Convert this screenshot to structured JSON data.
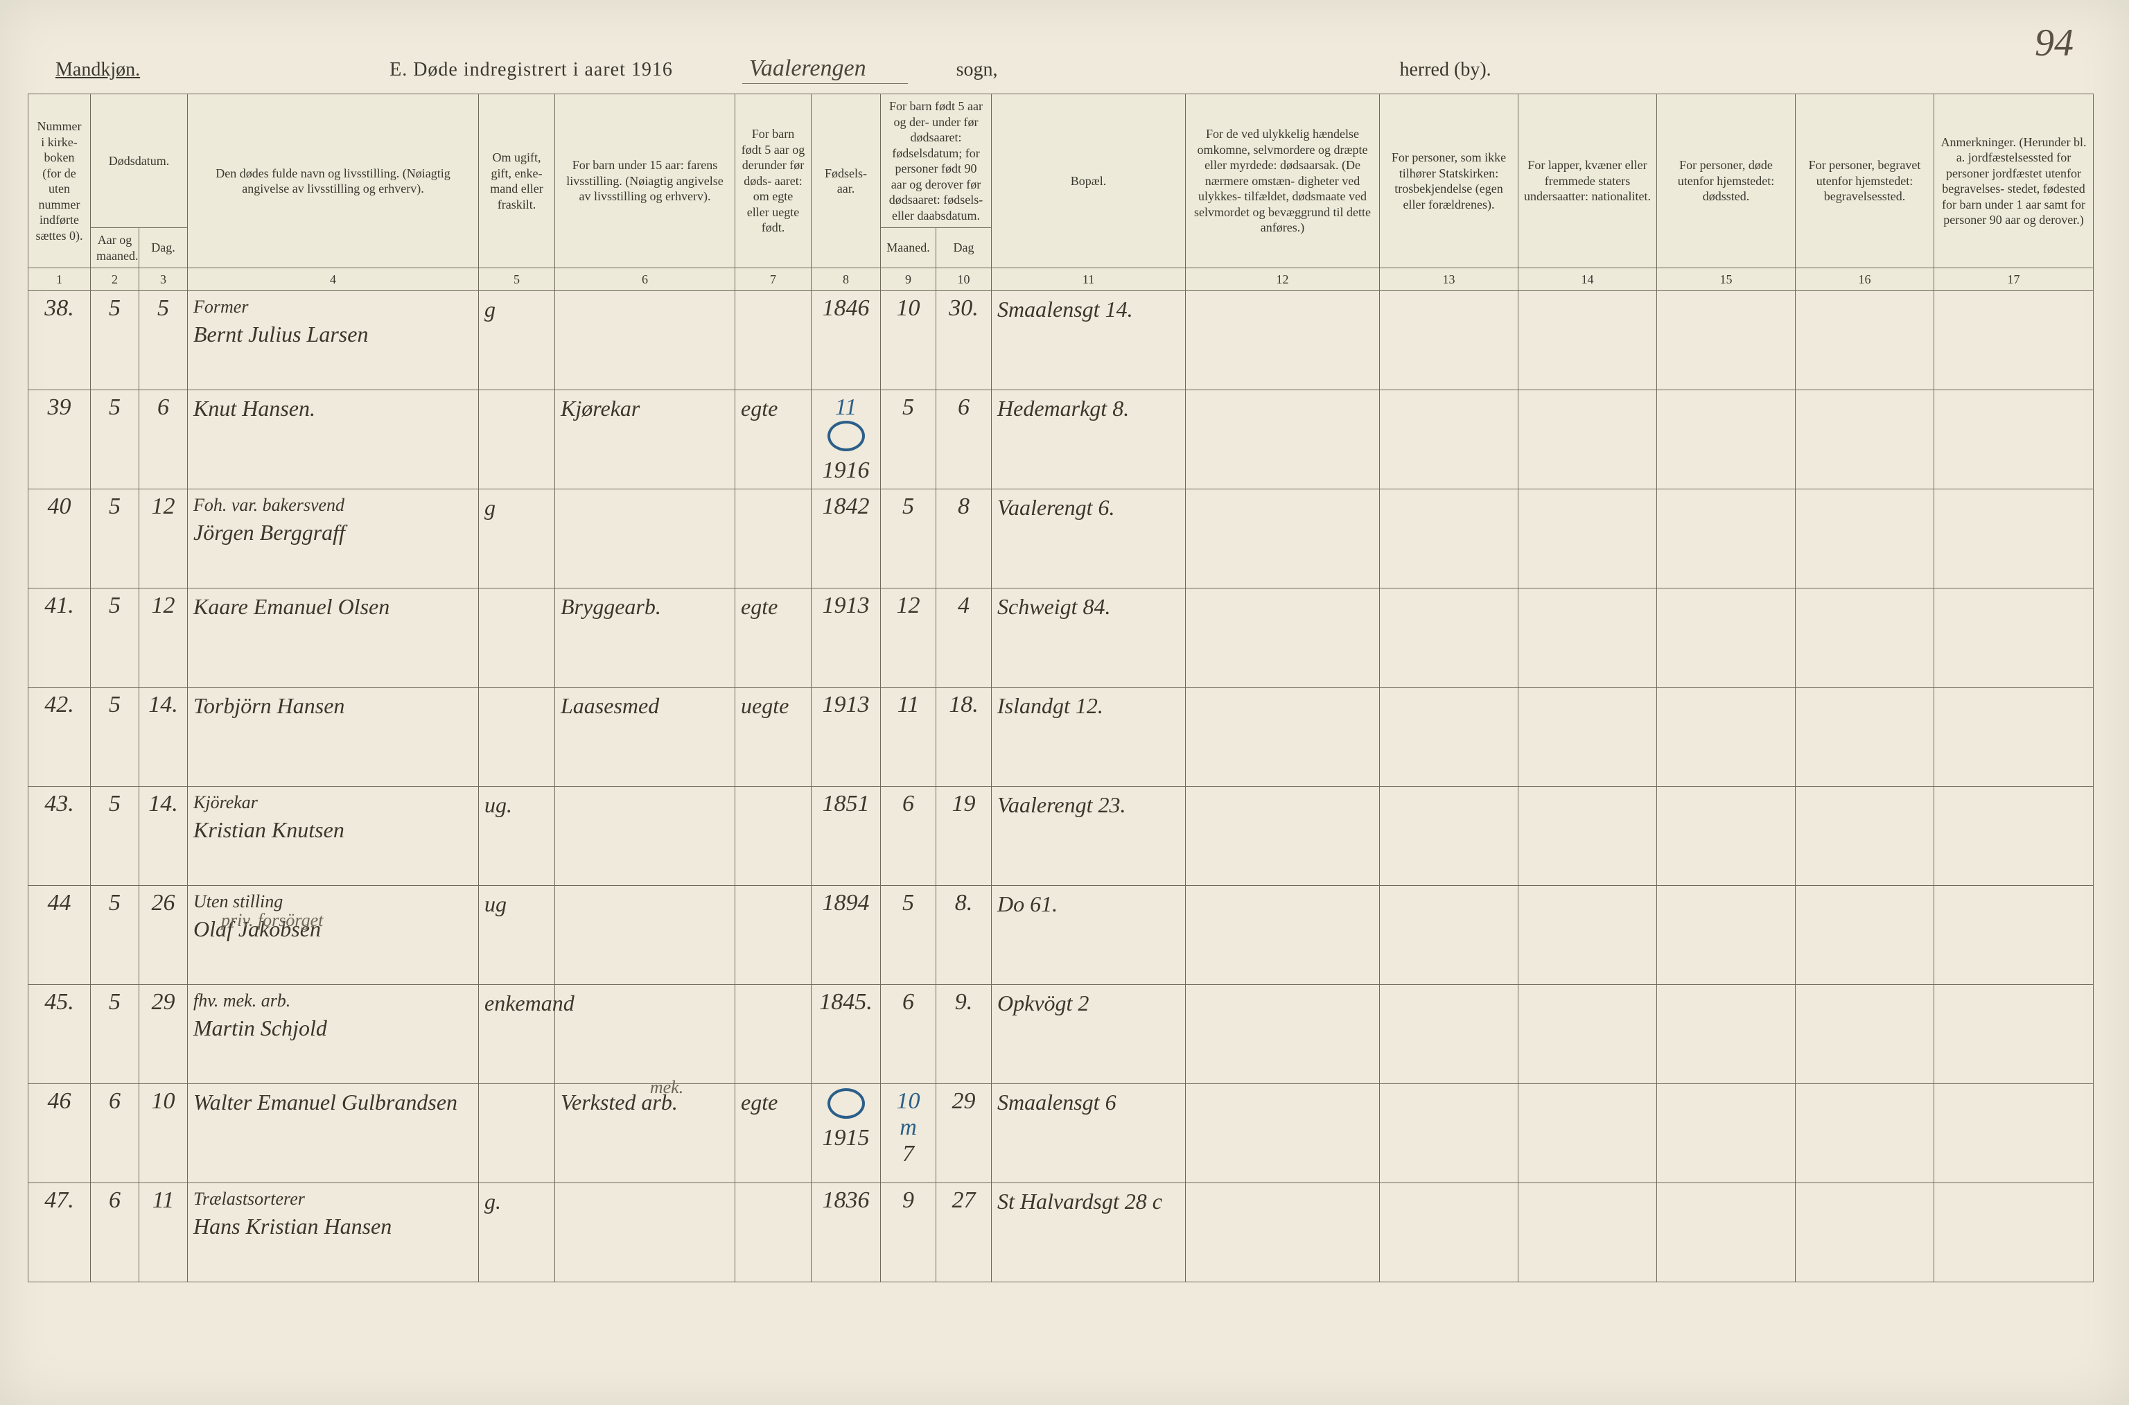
{
  "page_number_handwritten": "94",
  "header": {
    "mandkjon": "Mandkjøn.",
    "form_title": "E.  Døde indregistrert i aaret 191",
    "year_suffix": "6",
    "sogn_handwritten": "Vaalerengen",
    "sogn_label": "sogn,",
    "herred_label": "herred (by)."
  },
  "columns": {
    "c1": "Nummer i kirke- boken (for de uten nummer indførte sættes 0).",
    "c2_top": "Dødsdatum.",
    "c2a": "Aar og maaned.",
    "c2b": "Dag.",
    "c4": "Den dødes fulde navn og livsstilling. (Nøiagtig angivelse av livsstilling og erhverv).",
    "c5": "Om ugift, gift, enke- mand eller fraskilt.",
    "c6": "For barn under 15 aar: farens livsstilling. (Nøiagtig angivelse av livsstilling og erhverv).",
    "c7": "For barn født 5 aar og derunder før døds- aaret: om egte eller uegte født.",
    "c8": "Fødsels- aar.",
    "c9_top": "For barn født 5 aar og der- under før dødsaaret: fødselsdatum; for personer født 90 aar og derover før dødsaaret: fødsels- eller daabsdatum.",
    "c9a": "Maaned.",
    "c9b": "Dag",
    "c11": "Bopæl.",
    "c12": "For de ved ulykkelig hændelse omkomne, selvmordere og dræpte eller myrdede: dødsaarsak. (De nærmere omstæn- digheter ved ulykkes- tilfældet, dødsmaate ved selvmordet og bevæggrund til dette anføres.)",
    "c13": "For personer, som ikke tilhører Statskirken: trosbekjendelse (egen eller forældrenes).",
    "c14": "For lapper, kvæner eller fremmede staters undersaatter: nationalitet.",
    "c15": "For personer, døde utenfor hjemstedet: dødssted.",
    "c16": "For personer, begravet utenfor hjemstedet: begravelsessted.",
    "c17": "Anmerkninger. (Herunder bl. a. jordfæstelsessted for personer jordfæstet utenfor begravelses- stedet, fødested for barn under 1 aar samt for personer 90 aar og derover.)"
  },
  "colnums": [
    "1",
    "2",
    "3",
    "4",
    "5",
    "6",
    "7",
    "8",
    "9",
    "10",
    "11",
    "12",
    "13",
    "14",
    "15",
    "16",
    "17"
  ],
  "rows": [
    {
      "no": "38.",
      "mm": "5",
      "dd": "5",
      "occ": "Former",
      "name": "Bernt Julius Larsen",
      "civ": "g",
      "c6": "",
      "c7": "",
      "c8": "1846",
      "c9m": "10",
      "c9d": "30.",
      "bopel": "Smaalensgt 14."
    },
    {
      "no": "39",
      "mm": "5",
      "dd": "6",
      "occ": "",
      "name": "Knut Hansen.",
      "civ": "",
      "c6": "Kjørekar",
      "c7": "egte",
      "c8": "1916",
      "c8_circle": true,
      "c9m": "5",
      "c9d": "6",
      "bopel": "Hedemarkgt 8.",
      "c8_note": "11"
    },
    {
      "no": "40",
      "mm": "5",
      "dd": "12",
      "occ": "Foh. var. bakersvend",
      "name": "Jörgen Berggraff",
      "civ": "g",
      "c6": "",
      "c7": "",
      "c8": "1842",
      "c9m": "5",
      "c9d": "8",
      "bopel": "Vaalerengt 6."
    },
    {
      "no": "41.",
      "mm": "5",
      "dd": "12",
      "occ": "",
      "name": "Kaare Emanuel Olsen",
      "civ": "",
      "c6": "Bryggearb.",
      "c7": "egte",
      "c8": "1913",
      "c9m": "12",
      "c9d": "4",
      "bopel": "Schweigt 84."
    },
    {
      "no": "42.",
      "mm": "5",
      "dd": "14.",
      "occ": "",
      "name": "Torbjörn Hansen",
      "civ": "",
      "c6": "Laasesmed",
      "c7": "uegte",
      "c8": "1913",
      "c9m": "11",
      "c9d": "18.",
      "bopel": "Islandgt 12."
    },
    {
      "no": "43.",
      "mm": "5",
      "dd": "14.",
      "occ": "Kjörekar",
      "name": "Kristian Knutsen",
      "civ": "ug.",
      "c6": "",
      "c7": "",
      "c8": "1851",
      "c9m": "6",
      "c9d": "19",
      "bopel": "Vaalerengt 23."
    },
    {
      "no": "44",
      "mm": "5",
      "dd": "26",
      "occ": "Uten stilling",
      "name": "Olaf Jakobsen",
      "civ": "ug",
      "c6": "",
      "c7": "",
      "c8": "1894",
      "c9m": "5",
      "c9d": "8.",
      "bopel": "Do  61.",
      "annot": "priv. forsörget"
    },
    {
      "no": "45.",
      "mm": "5",
      "dd": "29",
      "occ": "fhv. mek. arb.",
      "name": "Martin Schjold",
      "civ": "enkemand",
      "c6": "",
      "c7": "",
      "c8": "1845.",
      "c9m": "6",
      "c9d": "9.",
      "bopel": "Opkvögt 2"
    },
    {
      "no": "46",
      "mm": "6",
      "dd": "10",
      "occ": "",
      "name": "Walter Emanuel Gulbrandsen",
      "civ": "",
      "c6": "Verksted arb.",
      "c6_annot": "mek.",
      "c7": "egte",
      "c8": "1915",
      "c8_circle": true,
      "c9m": "7",
      "c9d": "29",
      "c9m_note": "10 m",
      "bopel": "Smaalensgt 6"
    },
    {
      "no": "47.",
      "mm": "6",
      "dd": "11",
      "occ": "Trælastsorterer",
      "name": "Hans Kristian Hansen",
      "civ": "g.",
      "c6": "",
      "c7": "",
      "c8": "1836",
      "c9m": "9",
      "c9d": "27",
      "bopel": "St Halvardsgt 28 c"
    }
  ]
}
